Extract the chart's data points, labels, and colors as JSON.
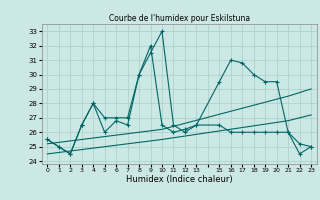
{
  "title": "Courbe de l'humidex pour Eskilstuna",
  "xlabel": "Humidex (Indice chaleur)",
  "background_color": "#cce8e4",
  "grid_color": "#aacccc",
  "line_color": "#006666",
  "xlim": [
    -0.5,
    23.5
  ],
  "ylim": [
    23.8,
    33.5
  ],
  "yticks": [
    24,
    25,
    26,
    27,
    28,
    29,
    30,
    31,
    32,
    33
  ],
  "xtick_labels": [
    "0",
    "1",
    "2",
    "3",
    "4",
    "5",
    "6",
    "7",
    "8",
    "9",
    "10",
    "11",
    "12",
    "13",
    "",
    "15",
    "16",
    "17",
    "18",
    "19",
    "20",
    "21",
    "22",
    "23"
  ],
  "series1_x": [
    0,
    1,
    2,
    3,
    4,
    5,
    6,
    7,
    8,
    9,
    10,
    11,
    12,
    13,
    15,
    16,
    17,
    18,
    19,
    20,
    21,
    22,
    23
  ],
  "series1_y": [
    25.5,
    25.0,
    24.5,
    26.5,
    28.0,
    27.0,
    27.0,
    27.0,
    30.0,
    31.5,
    33.0,
    26.5,
    26.0,
    26.5,
    29.5,
    31.0,
    30.8,
    30.0,
    29.5,
    29.5,
    26.0,
    24.5,
    25.0
  ],
  "series2_x": [
    0,
    1,
    2,
    3,
    4,
    5,
    6,
    7,
    8,
    9,
    10,
    11,
    12,
    13,
    15,
    16,
    17,
    18,
    19,
    20,
    21,
    22,
    23
  ],
  "series2_y": [
    25.5,
    25.0,
    24.5,
    26.5,
    28.0,
    26.0,
    26.8,
    26.5,
    30.0,
    32.0,
    26.5,
    26.0,
    26.2,
    26.5,
    26.5,
    26.0,
    26.0,
    26.0,
    26.0,
    26.0,
    26.0,
    25.2,
    25.0
  ],
  "series3_x": [
    0,
    10,
    21,
    23
  ],
  "series3_y": [
    25.2,
    26.2,
    28.5,
    29.0
  ],
  "series4_x": [
    0,
    10,
    21,
    23
  ],
  "series4_y": [
    24.5,
    25.5,
    26.8,
    27.2
  ]
}
